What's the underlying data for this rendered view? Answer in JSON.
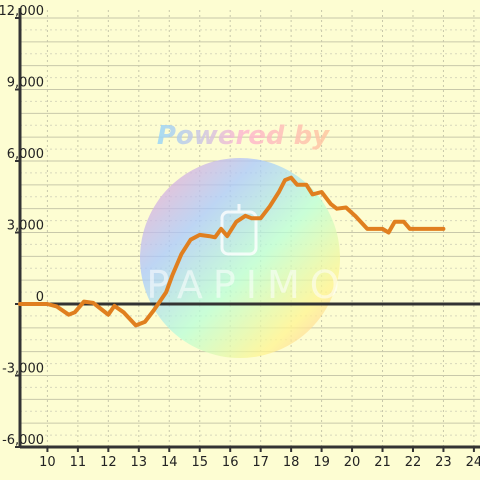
{
  "watermark": {
    "top_text": "Powered by",
    "brand_text": "PAPIMO"
  },
  "chart_data": {
    "type": "line",
    "title": "",
    "xlabel": "",
    "ylabel": "",
    "xlim": [
      9.1,
      24.2
    ],
    "ylim": [
      -6000,
      12000
    ],
    "x_ticks": [
      10,
      11,
      12,
      13,
      14,
      15,
      16,
      17,
      18,
      19,
      20,
      21,
      22,
      23,
      24
    ],
    "x_tick_labels": [
      "10",
      "11",
      "12",
      "13",
      "14",
      "15",
      "16",
      "17",
      "18",
      "19",
      "20",
      "21",
      "22",
      "23",
      "24"
    ],
    "y_ticks": [
      12000,
      9000,
      6000,
      3000,
      0,
      -3000,
      -6000
    ],
    "y_tick_labels": [
      "12,000",
      "9,000",
      "6,000",
      "3,000",
      "0",
      "-3,000",
      "-6,000"
    ],
    "grid": true,
    "line_color": "#e07f1f",
    "background_color": "#fdfdd2",
    "series": [
      {
        "values": [
          [
            9.1,
            0
          ],
          [
            9.5,
            0
          ],
          [
            10.0,
            0
          ],
          [
            10.3,
            -100
          ],
          [
            10.7,
            -450
          ],
          [
            10.9,
            -350
          ],
          [
            11.2,
            100
          ],
          [
            11.5,
            50
          ],
          [
            11.8,
            -250
          ],
          [
            12.0,
            -450
          ],
          [
            12.2,
            -80
          ],
          [
            12.5,
            -350
          ],
          [
            12.9,
            -900
          ],
          [
            13.2,
            -750
          ],
          [
            13.5,
            -250
          ],
          [
            13.9,
            500
          ],
          [
            14.1,
            1200
          ],
          [
            14.4,
            2100
          ],
          [
            14.7,
            2700
          ],
          [
            15.0,
            2900
          ],
          [
            15.3,
            2850
          ],
          [
            15.5,
            2800
          ],
          [
            15.7,
            3150
          ],
          [
            15.9,
            2850
          ],
          [
            16.2,
            3450
          ],
          [
            16.5,
            3700
          ],
          [
            16.7,
            3600
          ],
          [
            17.0,
            3600
          ],
          [
            17.3,
            4100
          ],
          [
            17.6,
            4700
          ],
          [
            17.8,
            5200
          ],
          [
            18.0,
            5300
          ],
          [
            18.2,
            5000
          ],
          [
            18.5,
            5000
          ],
          [
            18.7,
            4600
          ],
          [
            19.0,
            4700
          ],
          [
            19.3,
            4200
          ],
          [
            19.5,
            4000
          ],
          [
            19.8,
            4050
          ],
          [
            20.1,
            3700
          ],
          [
            20.5,
            3150
          ],
          [
            21.0,
            3150
          ],
          [
            21.2,
            3000
          ],
          [
            21.4,
            3450
          ],
          [
            21.7,
            3450
          ],
          [
            21.9,
            3150
          ],
          [
            22.5,
            3150
          ],
          [
            23.0,
            3150
          ]
        ]
      }
    ]
  }
}
